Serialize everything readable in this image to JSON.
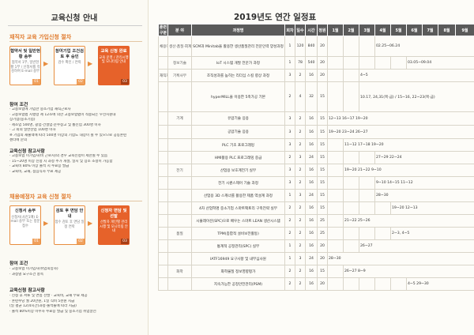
{
  "left": {
    "title": "교육신청 안내",
    "section1": {
      "heading": "재직자 교육 가입신청 절차",
      "steps": [
        {
          "num": "01",
          "title": "협약서 및 일반현황 송부",
          "sub": "협약서 1부, 일반현황 1부 / 신청서를 작성하여 E-mail 송부"
        },
        {
          "num": "02",
          "title": "참여기업 조건검토 후 승인",
          "sub": "검수 확인 / 연락"
        },
        {
          "num": "03",
          "title": "교육 신청 완료",
          "sub": "교육 운영 / 관리시행 및 모니터링 안내"
        }
      ],
      "cond_head": "참여 조건",
      "cond_lines": [
        "· 고용보험에 가입한 중소기업 재직근로자",
        "· 고용보험법 시행령 제 12조에 의한 고용보험법이 적용되는 우선지원대",
        "  상기업(중소기업)",
        "· 제조업 500명, 광업·건설업·운수창고 및 통신업 300명 이하",
        "· 그 외의 일반산업 100명 이하",
        "  ※ 기업의 재출액에 따라 500명 이상의 기업도 대상이 될 수 있으므로 공동훈련",
        "  센터에 문의"
      ],
      "notice_head": "교육신청 참고사항",
      "notice_lines": [
        "· 고용보험 미가입자(비 근로자)의 경우 교육신청이 제한될 수 있음",
        "· 15~20명 이상 신청 시 과정 추가 개설, 일시 및 장소 조정이 가능함",
        "· 교육비 80% 이상 출석 시 수료증 발급",
        "· 교육비, 교재, 점심식사 무료 제공"
      ]
    },
    "section2": {
      "heading": "채용예정자 교육 신청 절차",
      "steps": [
        {
          "num": "01",
          "title": "신청서 송부",
          "sub": "신청서(사진1매) E-mail 송부 또는 방문접수"
        },
        {
          "num": "02",
          "title": "검토 후 면담 안내",
          "sub": "접수 검토 후 면담 일정 연락"
        },
        {
          "num": "03",
          "title": "신청자 면담 및 선발",
          "sub": "선발자 개인별 관리시행 및 모니터링 안내"
        }
      ],
      "cond_head": "참여 조건",
      "cond_lines": [
        "· 고용보험 미가입자(취업희망자)",
        "· 과정별 요구조건 충족"
      ],
      "notice_head": "교육신청 참고사항",
      "notice_lines": [
        "· 신청 후 서류 및 면접 선발        · 교육비, 교재 무료 제공",
        "· 훈련수당 월 20만원, 1일 식비 5천원 지급",
        "  (일 평균 12(4시간)과정·출석률에 따라 지급)",
        "· 출석 80%이상 이수자 수료증 발급 및 중소기업 취업알선"
      ]
    }
  },
  "right": {
    "title": "2019년도 연간 일정표",
    "headers": [
      "훈련구분",
      "분 야",
      "과정명",
      "회차",
      "일수",
      "시간",
      "정원",
      "1월",
      "2월",
      "3월",
      "4월",
      "5월",
      "6월",
      "7월",
      "8월",
      "9월"
    ],
    "rows": [
      {
        "cat": "채용예정자",
        "field": "생산·품질·회계",
        "course": "SCM과 Minitab을 활용한 생산품질관리 전문인력 양성과정",
        "round": "1",
        "days": "120",
        "hours": "840",
        "cap": "20",
        "sched": "02.25~06.24",
        "sched_start": 4
      },
      {
        "cat": "",
        "field": "정보기술",
        "course": "IoT 시스템 개발 전문가 과정",
        "round": "1",
        "days": "78",
        "hours": "540",
        "cap": "20",
        "sched": "03.05~09.04",
        "sched_start": 6
      },
      {
        "cat": "재직자",
        "field": "기획사무",
        "course": "조직성과를 높히는 리더십 스킬 향상 과정",
        "round": "3",
        "days": "2",
        "hours": "16",
        "cap": "20",
        "sched": "4~5",
        "sched_start": 3
      },
      {
        "cat": "",
        "field": "",
        "course": "hyperMILL을 이용한 5축가공 기본",
        "round": "2",
        "days": "4",
        "hours": "32",
        "cap": "15",
        "sched": "10.17, 24,31(목·금) / 15~16, 22~23(목·금)",
        "sched_start": 3
      },
      {
        "cat": "",
        "field": "기계",
        "course": "유압기술 응용",
        "round": "3",
        "days": "2",
        "hours": "16",
        "cap": "15",
        "sched": "12~13    16~17              19~20",
        "sched_start": 1
      },
      {
        "cat": "",
        "field": "",
        "course": "공압기술 응용",
        "round": "3",
        "days": "2",
        "hours": "16",
        "cap": "15",
        "sched": "19~20    23~24              26~27",
        "sched_start": 1
      },
      {
        "cat": "",
        "field": "",
        "course": "PLC 기초 프로그래밍",
        "round": "3",
        "days": "2",
        "hours": "16",
        "cap": "15",
        "sched": "11~12              17~18    19~20",
        "sched_start": 2
      },
      {
        "cat": "",
        "field": "",
        "course": "HMI활용 PLC 프로그래밍 중급",
        "round": "2",
        "days": "3",
        "hours": "24",
        "cap": "15",
        "sched": "27~29    22~24",
        "sched_start": 4
      },
      {
        "cat": "",
        "field": "전기",
        "course": "산업용 보호계전기 실무",
        "round": "3",
        "days": "2",
        "hours": "16",
        "cap": "15",
        "sched": "19~20    21~22         9~10",
        "sched_start": 2
      },
      {
        "cat": "",
        "field": "",
        "course": "전기 시퀀스제어 기술 과정",
        "round": "3",
        "days": "2",
        "hours": "16",
        "cap": "15",
        "sched": "9~10 14~15 11~12",
        "sched_start": 4
      },
      {
        "cat": "",
        "field": "",
        "course": "산업용 3D 스캐너를 활용한 제품 역설계 과정",
        "round": "1",
        "days": "3",
        "hours": "24",
        "cap": "15",
        "sched": "28~30",
        "sched_start": 4
      },
      {
        "cat": "",
        "field": "",
        "course": "4차 산업혁명 중소기업 스마트팩토리 구축전략 실무",
        "round": "2",
        "days": "2",
        "hours": "16",
        "cap": "15",
        "sched": "19~20    12~13",
        "sched_start": 5
      },
      {
        "cat": "",
        "field": "",
        "course": "시뮬레이션(SPC)으로 배우는 스마트 LEAN 생산시스템",
        "round": "2",
        "days": "2",
        "hours": "16",
        "cap": "25",
        "sched": "21~22 25~26",
        "sched_start": 2
      },
      {
        "cat": "",
        "field": "품질",
        "course": "TPM(종합적 설비보전활동)",
        "round": "2",
        "days": "2",
        "hours": "16",
        "cap": "25",
        "sched": "2~3, 4~5",
        "sched_start": 5
      },
      {
        "cat": "",
        "field": "",
        "course": "통계적 공정관리(SPC) 실무",
        "round": "1",
        "days": "2",
        "hours": "16",
        "cap": "20",
        "sched": "26~27",
        "sched_start": 3
      },
      {
        "cat": "",
        "field": "",
        "course": "IATF16949 요구사항 및 내부심사원",
        "round": "1",
        "days": "3",
        "hours": "24",
        "cap": "20",
        "sched": "28~30",
        "sched_start": 1
      },
      {
        "cat": "",
        "field": "화학",
        "course": "화학물질 정보영향평가",
        "round": "2",
        "days": "2",
        "hours": "16",
        "cap": "15",
        "sched": "26~27                          8~9",
        "sched_start": 2
      },
      {
        "cat": "",
        "field": "",
        "course": "지속가능한 공정안전관리(PSM)",
        "round": "2",
        "days": "2",
        "hours": "16",
        "cap": "20",
        "sched": "4~5  29~30",
        "sched_start": 6
      }
    ]
  },
  "colors": {
    "accent": "#e07a2c",
    "header_bg": "#5a5a5a",
    "step_highlight": "#e6622a"
  }
}
